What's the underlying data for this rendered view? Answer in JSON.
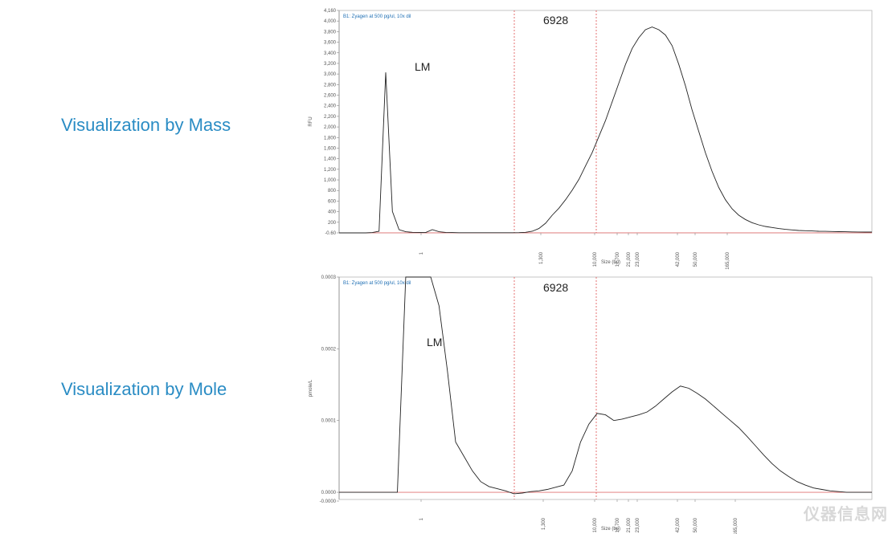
{
  "labels": {
    "mass": "Visualization by Mass",
    "mole": "Visualization by Mole"
  },
  "watermark": "仪器信息网",
  "chart_data": [
    {
      "type": "line",
      "title": "",
      "sample_label": "B1: Zyagen at 500 pg/ul, 10x dil",
      "ylabel": "RFU",
      "xlabel": "Size (bp)",
      "y_ticks": [
        "-0.60",
        "200",
        "400",
        "600",
        "800",
        "1,000",
        "1,200",
        "1,400",
        "1,600",
        "1,800",
        "2,000",
        "2,200",
        "2,400",
        "2,600",
        "2,800",
        "3,000",
        "3,200",
        "3,400",
        "3,600",
        "3,800",
        "4,000",
        "4,160"
      ],
      "x_ticks": [
        "1",
        "1,300",
        "10,000",
        "17,700",
        "21,000",
        "23,000",
        "42,000",
        "50,000",
        "165,000"
      ],
      "annotations": [
        {
          "text": "LM",
          "x": "1",
          "y": 3050
        },
        {
          "text": "6928",
          "x": "between markers",
          "y": 4000
        }
      ],
      "marker_lines": [
        {
          "x": "~3,000",
          "style": "dashed",
          "color": "#e05050"
        },
        {
          "x": "10,000",
          "style": "dashed",
          "color": "#e05050"
        }
      ],
      "ylim": [
        -0.6,
        4160
      ],
      "series": [
        {
          "values": [
            0,
            0,
            0,
            0,
            0,
            5,
            30,
            3000,
            400,
            60,
            20,
            10,
            8,
            6,
            60,
            20,
            8,
            5,
            3,
            2,
            2,
            2,
            2,
            2,
            2,
            2,
            2,
            4,
            10,
            30,
            80,
            180,
            330,
            460,
            620,
            800,
            1000,
            1250,
            1500,
            1800,
            2100,
            2450,
            2800,
            3150,
            3450,
            3650,
            3800,
            3850,
            3800,
            3700,
            3500,
            3150,
            2750,
            2300,
            1900,
            1500,
            1150,
            850,
            620,
            450,
            330,
            250,
            190,
            150,
            120,
            100,
            80,
            65,
            55,
            45,
            40,
            35,
            30,
            28,
            25,
            22,
            20,
            18,
            16,
            15,
            14
          ]
        }
      ]
    },
    {
      "type": "line",
      "title": "",
      "sample_label": "B1: Zyagen at 500 pg/ul, 10x dil",
      "ylabel": "pmole/L",
      "xlabel": "Size (bp)",
      "y_ticks": [
        "0.0003",
        "0.0002",
        "0.0001",
        "0.0000",
        "-0.0000"
      ],
      "x_ticks": [
        "1",
        "1,300",
        "10,000",
        "17,700",
        "21,000",
        "23,000",
        "42,000",
        "50,000",
        "165,000"
      ],
      "annotations": [
        {
          "text": "LM",
          "x": "1",
          "y": 0.00023
        },
        {
          "text": "6928",
          "x": "between markers",
          "y": 0.00029
        }
      ],
      "marker_lines": [
        {
          "x": "~3,000",
          "style": "dashed",
          "color": "#e05050"
        },
        {
          "x": "10,000",
          "style": "dashed",
          "color": "#e05050"
        }
      ],
      "ylim": [
        -1e-05,
        0.0003
      ],
      "series": [
        {
          "values": [
            0,
            0,
            0,
            0,
            0,
            0,
            0,
            0,
            0.0003,
            0.0003,
            0.0003,
            0.0003,
            0.00026,
            0.00017,
            7e-05,
            5e-05,
            3e-05,
            1.5e-05,
            8e-06,
            5e-06,
            2e-06,
            -2e-06,
            -1e-06,
            1e-06,
            2e-06,
            4e-06,
            7e-06,
            1e-05,
            3e-05,
            7e-05,
            9.5e-05,
            0.00011,
            0.000108,
            0.0001,
            0.000102,
            0.000105,
            0.000108,
            0.000112,
            0.00012,
            0.00013,
            0.00014,
            0.000148,
            0.000145,
            0.000138,
            0.00013,
            0.00012,
            0.00011,
            0.0001,
            9e-05,
            7.8e-05,
            6.5e-05,
            5.2e-05,
            4e-05,
            3e-05,
            2.2e-05,
            1.5e-05,
            1e-05,
            6e-06,
            4e-06,
            2e-06,
            1e-06,
            0,
            0,
            0,
            0
          ]
        }
      ]
    }
  ]
}
